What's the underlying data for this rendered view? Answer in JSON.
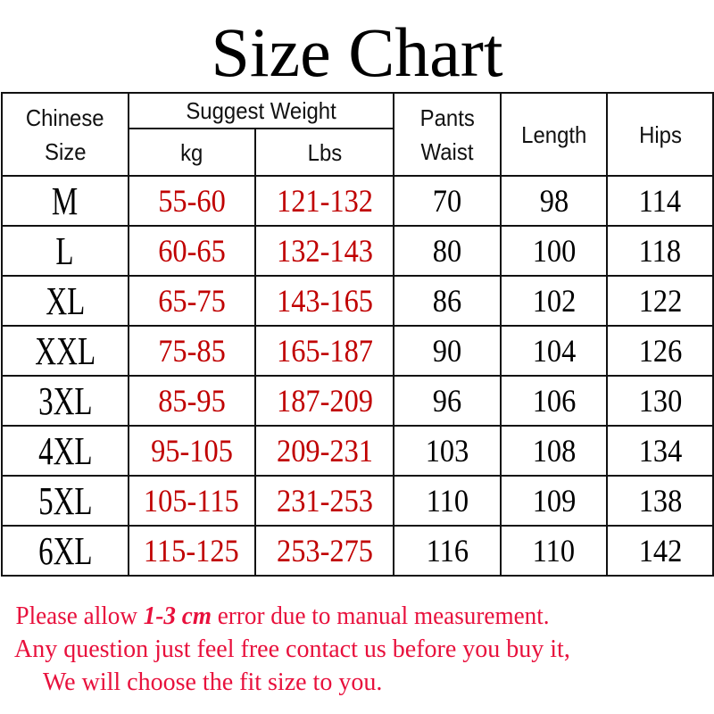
{
  "title": "Size Chart",
  "table": {
    "headers": {
      "size": [
        "Chinese",
        "Size"
      ],
      "weight_group": "Suggest Weight",
      "kg": "kg",
      "lbs": "Lbs",
      "waist": [
        "Pants",
        "Waist"
      ],
      "length": "Length",
      "hips": "Hips"
    },
    "rows": [
      {
        "size": "M",
        "kg": "55-60",
        "lbs": "121-132",
        "waist": "70",
        "length": "98",
        "hips": "114"
      },
      {
        "size": "L",
        "kg": "60-65",
        "lbs": "132-143",
        "waist": "80",
        "length": "100",
        "hips": "118"
      },
      {
        "size": "XL",
        "kg": "65-75",
        "lbs": "143-165",
        "waist": "86",
        "length": "102",
        "hips": "122"
      },
      {
        "size": "XXL",
        "kg": "75-85",
        "lbs": "165-187",
        "waist": "90",
        "length": "104",
        "hips": "126"
      },
      {
        "size": "3XL",
        "kg": "85-95",
        "lbs": "187-209",
        "waist": "96",
        "length": "106",
        "hips": "130"
      },
      {
        "size": "4XL",
        "kg": "95-105",
        "lbs": "209-231",
        "waist": "103",
        "length": "108",
        "hips": "134"
      },
      {
        "size": "5XL",
        "kg": "105-115",
        "lbs": "231-253",
        "waist": "110",
        "length": "109",
        "hips": "138"
      },
      {
        "size": "6XL",
        "kg": "115-125",
        "lbs": "253-275",
        "waist": "116",
        "length": "110",
        "hips": "142"
      }
    ]
  },
  "notes": {
    "line1_pre": "Please allow ",
    "line1_bold": "1-3 cm",
    "line1_post": " error due to manual measurement.",
    "line2": "Any question just feel free contact us before you buy it,",
    "line3": "We will choose the fit size to you."
  },
  "colors": {
    "weight_text": "#c00000",
    "notes_text": "#e8103c"
  }
}
